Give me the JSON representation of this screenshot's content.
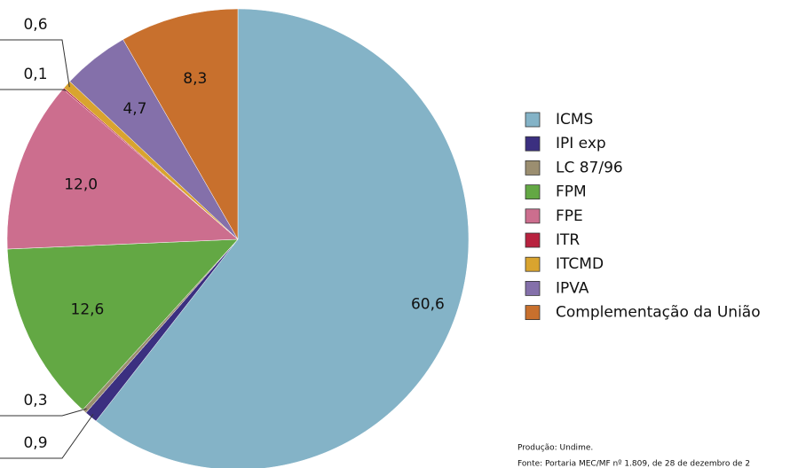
{
  "chart_data": {
    "type": "pie",
    "categories": [
      "ICMS",
      "IPI exp",
      "LC 87/96",
      "FPM",
      "FPE",
      "ITR",
      "ITCMD",
      "IPVA",
      "Complementação da União"
    ],
    "values": [
      60.6,
      0.9,
      0.3,
      12.6,
      12.0,
      0.1,
      0.6,
      4.7,
      8.3
    ],
    "value_labels": [
      "60,6",
      "0,9",
      "0,3",
      "12,6",
      "12,0",
      "0,1",
      "0,6",
      "4,7",
      "8,3"
    ],
    "colors": [
      "#84b3c7",
      "#3b2f80",
      "#9b8e70",
      "#63a844",
      "#cc6e8e",
      "#b8223f",
      "#d9a42f",
      "#8470aa",
      "#c8702d"
    ],
    "legend": "right",
    "notes": [
      "Produção: Undime.",
      "Fonte: Portaria MEC/MF nº 1.809, de 28 de dezembro de 2"
    ]
  }
}
